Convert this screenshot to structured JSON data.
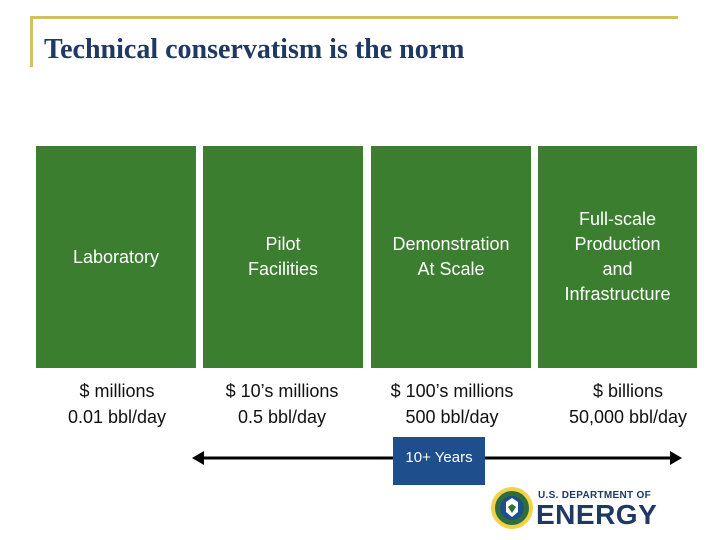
{
  "slide": {
    "title": "Technical conservatism is the norm"
  },
  "stages": [
    {
      "lines": [
        "Laboratory"
      ]
    },
    {
      "lines": [
        "Pilot",
        "Facilities"
      ]
    },
    {
      "lines": [
        "Demonstration",
        "At Scale"
      ]
    },
    {
      "lines": [
        "Full-scale",
        "Production",
        "and",
        "Infrastructure"
      ]
    }
  ],
  "costs": [
    {
      "cost": "$ millions",
      "rate": "0.01 bbl/day"
    },
    {
      "cost": "$ 10’s millions",
      "rate": "0.5 bbl/day"
    },
    {
      "cost": "$ 100’s millions",
      "rate": "500 bbl/day"
    },
    {
      "cost": "$ billions",
      "rate": "50,000 bbl/day"
    }
  ],
  "timeline": {
    "label": "10+ Years"
  },
  "logo": {
    "small_text": "U.S. DEPARTMENT OF",
    "big_text": "ENERGY"
  },
  "colors": {
    "stage_fill": "#3b7e2f",
    "title": "#1f3864",
    "frame": "#d4c062",
    "timeline_box": "#1f4e8c"
  }
}
